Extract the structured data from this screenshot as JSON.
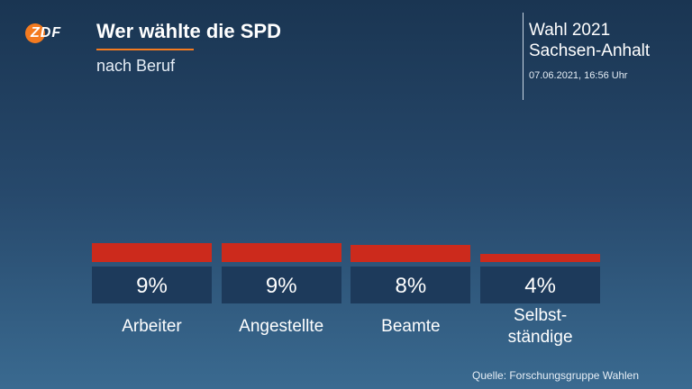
{
  "logo": "ZDF",
  "chart_data": {
    "type": "bar",
    "title": "Wer wählte die SPD",
    "subtitle": "nach Beruf",
    "election": "Wahl 2021",
    "region": "Sachsen-Anhalt",
    "timestamp": "07.06.2021, 16:56 Uhr",
    "source": "Quelle: Forschungsgruppe Wahlen",
    "categories": [
      "Arbeiter",
      "Angestellte",
      "Beamte",
      "Selbst-\nständige"
    ],
    "values": [
      9,
      9,
      8,
      4
    ],
    "value_labels": [
      "9%",
      "9%",
      "8%",
      "4%"
    ],
    "color": "#cc2a1c"
  }
}
